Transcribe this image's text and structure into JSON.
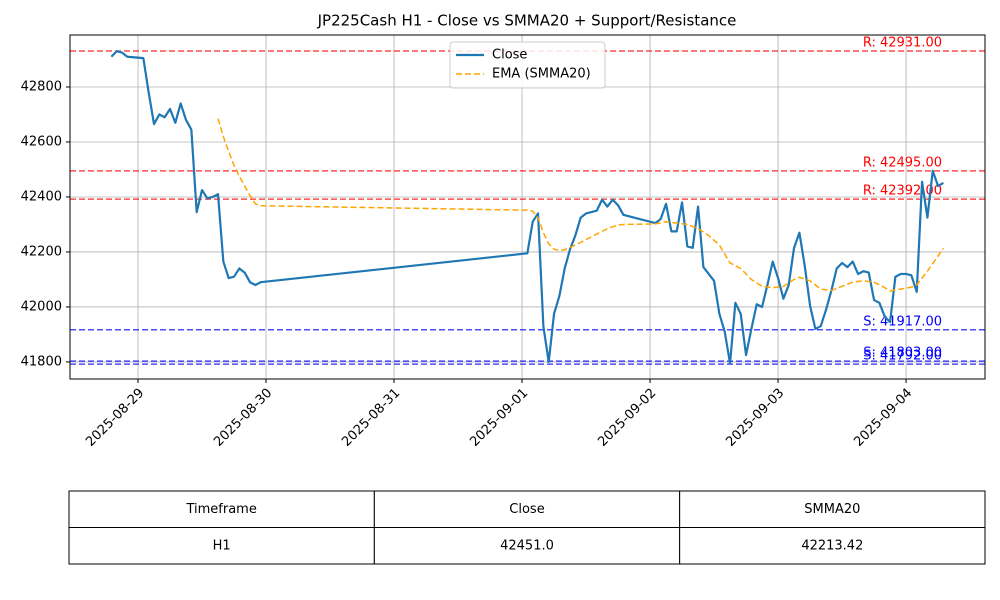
{
  "chart_data": {
    "type": "line",
    "title": "JP225Cash H1 - Close vs SMMA20 + Support/Resistance",
    "xlim": [
      "2025-08-28T11:15",
      "2025-09-04T14:48"
    ],
    "xticks": [
      "2025-08-29",
      "2025-08-30",
      "2025-08-31",
      "2025-09-01",
      "2025-09-02",
      "2025-09-03",
      "2025-09-04"
    ],
    "ylim": [
      41738,
      42989
    ],
    "yticks": [
      41800,
      42000,
      42200,
      42400,
      42600,
      42800
    ],
    "grid": true,
    "legend": "upper center",
    "series": [
      {
        "name": "Close",
        "color": "#1f77b4",
        "x": [
          "2025-08-28T19:00",
          "2025-08-28T20:00",
          "2025-08-28T21:00",
          "2025-08-28T22:00",
          "2025-08-29T01:00",
          "2025-08-29T02:00",
          "2025-08-29T03:00",
          "2025-08-29T04:00",
          "2025-08-29T05:00",
          "2025-08-29T06:00",
          "2025-08-29T07:00",
          "2025-08-29T08:00",
          "2025-08-29T09:00",
          "2025-08-29T10:00",
          "2025-08-29T11:00",
          "2025-08-29T12:00",
          "2025-08-29T13:00",
          "2025-08-29T14:00",
          "2025-08-29T15:00",
          "2025-08-29T16:00",
          "2025-08-29T17:00",
          "2025-08-29T18:00",
          "2025-08-29T19:00",
          "2025-08-29T20:00",
          "2025-08-29T21:00",
          "2025-08-29T22:00",
          "2025-08-29T23:00",
          "2025-09-01T01:00",
          "2025-09-01T02:00",
          "2025-09-01T03:00",
          "2025-09-01T04:00",
          "2025-09-01T05:00",
          "2025-09-01T06:00",
          "2025-09-01T07:00",
          "2025-09-01T08:00",
          "2025-09-01T09:00",
          "2025-09-01T10:00",
          "2025-09-01T11:00",
          "2025-09-01T12:00",
          "2025-09-01T14:00",
          "2025-09-01T15:00",
          "2025-09-01T16:00",
          "2025-09-01T17:00",
          "2025-09-01T18:00",
          "2025-09-01T19:00",
          "2025-09-02T01:00",
          "2025-09-02T02:00",
          "2025-09-02T03:00",
          "2025-09-02T04:00",
          "2025-09-02T05:00",
          "2025-09-02T06:00",
          "2025-09-02T07:00",
          "2025-09-02T08:00",
          "2025-09-02T09:00",
          "2025-09-02T10:00",
          "2025-09-02T11:00",
          "2025-09-02T12:00",
          "2025-09-02T13:00",
          "2025-09-02T14:00",
          "2025-09-02T15:00",
          "2025-09-02T16:00",
          "2025-09-02T17:00",
          "2025-09-02T18:00",
          "2025-09-02T19:00",
          "2025-09-02T20:00",
          "2025-09-02T21:00",
          "2025-09-02T22:00",
          "2025-09-02T23:00",
          "2025-09-03T00:00",
          "2025-09-03T01:00",
          "2025-09-03T02:00",
          "2025-09-03T03:00",
          "2025-09-03T04:00",
          "2025-09-03T05:00",
          "2025-09-03T06:00",
          "2025-09-03T07:00",
          "2025-09-03T08:00",
          "2025-09-03T09:00",
          "2025-09-03T10:00",
          "2025-09-03T11:00",
          "2025-09-03T12:00",
          "2025-09-03T13:00",
          "2025-09-03T14:00",
          "2025-09-03T15:00",
          "2025-09-03T16:00",
          "2025-09-03T17:00",
          "2025-09-03T18:00",
          "2025-09-03T19:00",
          "2025-09-03T20:00",
          "2025-09-03T21:00",
          "2025-09-03T22:00",
          "2025-09-03T23:00",
          "2025-09-04T00:00",
          "2025-09-04T01:00",
          "2025-09-04T02:00",
          "2025-09-04T03:00",
          "2025-09-04T04:00",
          "2025-09-04T05:00",
          "2025-09-04T06:00",
          "2025-09-04T07:00"
        ],
        "values": [
          42910,
          42930,
          42925,
          42910,
          42905,
          42780,
          42665,
          42700,
          42690,
          42720,
          42670,
          42740,
          42680,
          42645,
          42345,
          42425,
          42395,
          42400,
          42410,
          42165,
          42105,
          42110,
          42140,
          42125,
          42090,
          42080,
          42090,
          42195,
          42310,
          42340,
          41930,
          41800,
          41975,
          42040,
          42140,
          42210,
          42260,
          42325,
          42340,
          42350,
          42390,
          42365,
          42390,
          42370,
          42335,
          42305,
          42320,
          42375,
          42275,
          42275,
          42380,
          42220,
          42215,
          42365,
          42145,
          42120,
          42095,
          41975,
          41910,
          41795,
          42015,
          41975,
          41825,
          41920,
          42010,
          42000,
          42080,
          42165,
          42105,
          42030,
          42080,
          42215,
          42270,
          42150,
          42005,
          41920,
          41930,
          41990,
          42060,
          42140,
          42160,
          42145,
          42165,
          42120,
          42130,
          42125,
          42025,
          42015,
          41965,
          41945,
          42110,
          42120,
          42120,
          42115,
          42055,
          42455,
          42325,
          42495,
          42440,
          42451
        ]
      },
      {
        "name": "EMA (SMMA20)",
        "color": "#ffa500",
        "x": [
          "2025-08-29T15:00",
          "2025-08-29T16:00",
          "2025-08-29T17:00",
          "2025-08-29T18:00",
          "2025-08-29T19:00",
          "2025-08-29T20:00",
          "2025-08-29T21:00",
          "2025-08-29T22:00",
          "2025-08-29T23:00",
          "2025-09-01T01:00",
          "2025-09-01T02:00",
          "2025-09-01T03:00",
          "2025-09-01T04:00",
          "2025-09-01T05:00",
          "2025-09-01T06:00",
          "2025-09-01T07:00",
          "2025-09-01T08:00",
          "2025-09-01T10:00",
          "2025-09-01T12:00",
          "2025-09-01T14:00",
          "2025-09-01T16:00",
          "2025-09-01T18:00",
          "2025-09-01T19:00",
          "2025-09-02T01:00",
          "2025-09-02T03:00",
          "2025-09-02T05:00",
          "2025-09-02T07:00",
          "2025-09-02T09:00",
          "2025-09-02T11:00",
          "2025-09-02T13:00",
          "2025-09-02T15:00",
          "2025-09-02T17:00",
          "2025-09-02T19:00",
          "2025-09-02T21:00",
          "2025-09-02T23:00",
          "2025-09-03T01:00",
          "2025-09-03T03:00",
          "2025-09-03T04:00",
          "2025-09-03T06:00",
          "2025-09-03T08:00",
          "2025-09-03T10:00",
          "2025-09-03T12:00",
          "2025-09-03T14:00",
          "2025-09-03T16:00",
          "2025-09-03T18:00",
          "2025-09-03T20:00",
          "2025-09-03T21:00",
          "2025-09-03T23:00",
          "2025-09-04T01:00",
          "2025-09-04T02:00",
          "2025-09-04T04:00",
          "2025-09-04T07:00"
        ],
        "values": [
          42685,
          42620,
          42565,
          42515,
          42475,
          42440,
          42405,
          42375,
          42368,
          42352,
          42348,
          42325,
          42270,
          42230,
          42210,
          42205,
          42208,
          42225,
          42245,
          42265,
          42285,
          42298,
          42300,
          42302,
          42310,
          42305,
          42300,
          42285,
          42260,
          42225,
          42160,
          42140,
          42100,
          42075,
          42070,
          42075,
          42100,
          42108,
          42095,
          42065,
          42060,
          42075,
          42090,
          42095,
          42090,
          42070,
          42058,
          42065,
          42072,
          42080,
          42130,
          42213.42
        ]
      }
    ],
    "levels": [
      {
        "value": 42931,
        "label": "R: 42931.00",
        "color": "#ff0000"
      },
      {
        "value": 42495,
        "label": "R: 42495.00",
        "color": "#ff0000"
      },
      {
        "value": 42392,
        "label": "R: 42392.00",
        "color": "#ff0000"
      },
      {
        "value": 41917,
        "label": "S: 41917.00",
        "color": "#0000ff"
      },
      {
        "value": 41803,
        "label": "S: 41803.00",
        "color": "#0000ff"
      },
      {
        "value": 41792,
        "label": "S: 41792.00",
        "color": "#0000ff"
      }
    ]
  },
  "table": {
    "columns": [
      "Timeframe",
      "Close",
      "SMMA20"
    ],
    "rows": [
      [
        "H1",
        "42451.0",
        "42213.42"
      ]
    ]
  }
}
